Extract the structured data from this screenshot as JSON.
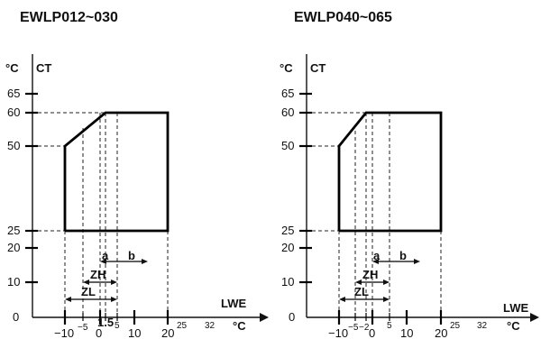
{
  "diagrams": [
    {
      "title": "EWLP012~030",
      "y_unit": "°C",
      "y_name": "CT",
      "x_name": "LWE",
      "x_unit": "°C",
      "y_ticks": [
        "65",
        "60",
        "50",
        "25",
        "20",
        "10",
        "0"
      ],
      "x_major_ticks": [
        "−10",
        "0",
        "10",
        "20"
      ],
      "x_minor_ticks": [
        "−5",
        "1.5",
        "5",
        "25",
        "32"
      ],
      "range_a": "a",
      "range_b": "b",
      "zone_h": "ZH",
      "zone_l": "ZL"
    },
    {
      "title": "EWLP040~065",
      "y_unit": "°C",
      "y_name": "CT",
      "x_name": "LWE",
      "x_unit": "°C",
      "y_ticks": [
        "65",
        "60",
        "50",
        "25",
        "20",
        "10",
        "0"
      ],
      "x_major_ticks": [
        "−10",
        "0",
        "10",
        "20"
      ],
      "x_minor_ticks": [
        "−5",
        "−2",
        "5",
        "25",
        "32"
      ],
      "range_a": "a",
      "range_b": "b",
      "zone_h": "ZH",
      "zone_l": "ZL"
    }
  ]
}
